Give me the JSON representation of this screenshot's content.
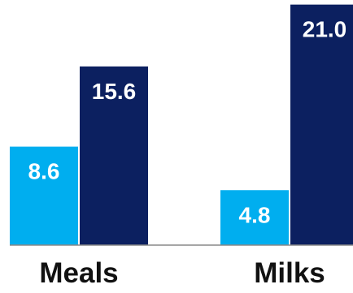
{
  "chart_data": {
    "type": "bar",
    "categories": [
      "Meals",
      "Milks"
    ],
    "series": [
      {
        "values": [
          8.6,
          4.8
        ],
        "color": "#00AEEF"
      },
      {
        "values": [
          15.6,
          21.0
        ],
        "color": "#0C2060"
      }
    ],
    "value_labels": [
      [
        "8.6",
        "15.6"
      ],
      [
        "4.8",
        "21.0"
      ]
    ],
    "ylim": [
      0,
      21.4
    ],
    "grid": false,
    "legend": "none",
    "title": "",
    "xlabel": "",
    "ylabel": "",
    "label_color": "#ffffff",
    "category_label_color": "#111111",
    "baseline_color": "#888888"
  }
}
